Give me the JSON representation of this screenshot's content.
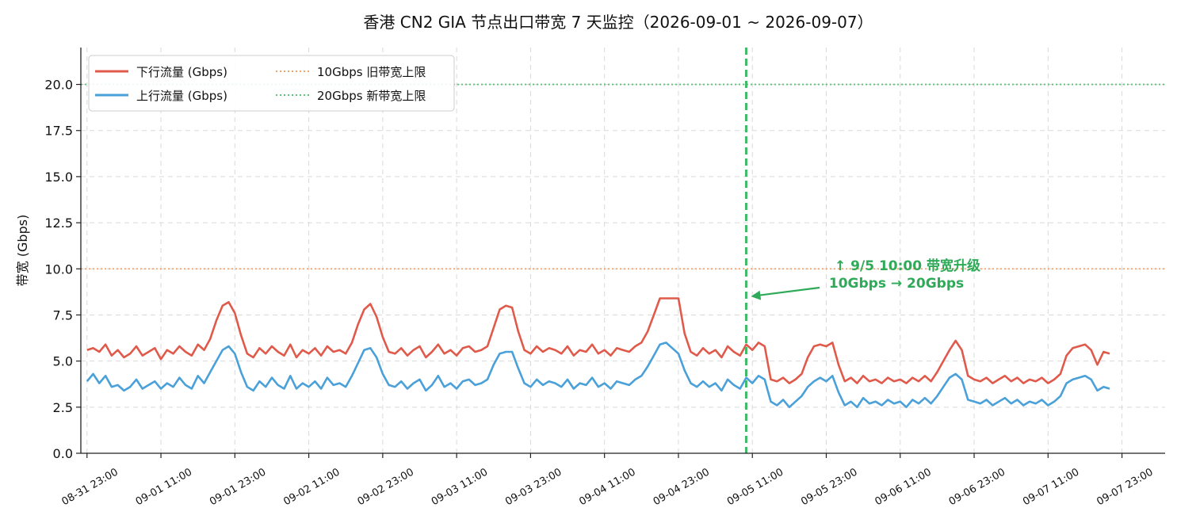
{
  "chart_data": {
    "type": "line",
    "title": "香港 CN2 GIA 节点出口带宽 7 天监控（2026-09-01 ~ 2026-09-07）",
    "xlabel": "",
    "ylabel": "带宽 (Gbps)",
    "ylim": [
      0,
      22
    ],
    "yticks": [
      "0.0",
      "2.5",
      "5.0",
      "7.5",
      "10.0",
      "12.5",
      "15.0",
      "17.5",
      "20.0"
    ],
    "xlim": [
      "2026-08-31 22:00",
      "2026-09-08 06:00"
    ],
    "xticks": [
      "08-31 23:00",
      "09-01 11:00",
      "09-01 23:00",
      "09-02 11:00",
      "09-02 23:00",
      "09-03 11:00",
      "09-03 23:00",
      "09-04 11:00",
      "09-04 23:00",
      "09-05 11:00",
      "09-05 23:00",
      "09-06 11:00",
      "09-06 23:00",
      "09-07 11:00",
      "09-07 23:00"
    ],
    "grid": true,
    "legend_position": "top-left",
    "colors": {
      "down": "#e05a4b",
      "up": "#4aa0d8",
      "old_limit": "#f0a36a",
      "new_limit": "#5cc47a",
      "event": "#3fba66",
      "annotation": "#2eaa58"
    },
    "x_hours": [
      0,
      1,
      2,
      3,
      4,
      5,
      6,
      7,
      8,
      9,
      10,
      11,
      12,
      13,
      14,
      15,
      16,
      17,
      18,
      19,
      20,
      21,
      22,
      23,
      24,
      25,
      26,
      27,
      28,
      29,
      30,
      31,
      32,
      33,
      34,
      35,
      36,
      37,
      38,
      39,
      40,
      41,
      42,
      43,
      44,
      45,
      46,
      47,
      48,
      49,
      50,
      51,
      52,
      53,
      54,
      55,
      56,
      57,
      58,
      59,
      60,
      61,
      62,
      63,
      64,
      65,
      66,
      67,
      68,
      69,
      70,
      71,
      72,
      73,
      74,
      75,
      76,
      77,
      78,
      79,
      80,
      81,
      82,
      83,
      84,
      85,
      86,
      87,
      88,
      89,
      90,
      91,
      92,
      93,
      94,
      95,
      96,
      97,
      98,
      99,
      100,
      101,
      102,
      103,
      104,
      105,
      106,
      107,
      108,
      109,
      110,
      111,
      112,
      113,
      114,
      115,
      116,
      117,
      118,
      119,
      120,
      121,
      122,
      123,
      124,
      125,
      126,
      127,
      128,
      129,
      130,
      131,
      132,
      133,
      134,
      135,
      136,
      137,
      138,
      139,
      140,
      141,
      142,
      143,
      144,
      145,
      146,
      147,
      148,
      149,
      150,
      151,
      152,
      153,
      154,
      155,
      156,
      157,
      158,
      159,
      160,
      161,
      162,
      163,
      164,
      165,
      166,
      167,
      168
    ],
    "x_hours_note": "hours since 2026-08-31 23:00",
    "series": [
      {
        "name": "下行流量 (Gbps)",
        "values": [
          5.6,
          5.7,
          5.5,
          5.9,
          5.3,
          5.6,
          5.2,
          5.4,
          5.8,
          5.3,
          5.5,
          5.7,
          5.1,
          5.6,
          5.4,
          5.8,
          5.5,
          5.3,
          5.9,
          5.6,
          6.2,
          7.2,
          8.0,
          8.2,
          7.6,
          6.4,
          5.4,
          5.2,
          5.7,
          5.4,
          5.8,
          5.5,
          5.3,
          5.9,
          5.2,
          5.6,
          5.4,
          5.7,
          5.3,
          5.8,
          5.5,
          5.6,
          5.4,
          6.0,
          7.0,
          7.8,
          8.1,
          7.4,
          6.3,
          5.5,
          5.4,
          5.7,
          5.3,
          5.6,
          5.8,
          5.2,
          5.5,
          5.9,
          5.4,
          5.6,
          5.3,
          5.7,
          5.8,
          5.5,
          5.6,
          5.8,
          6.8,
          7.8,
          8.0,
          7.9,
          6.6,
          5.6,
          5.4,
          5.8,
          5.5,
          5.7,
          5.6,
          5.4,
          5.8,
          5.3,
          5.6,
          5.5,
          5.9,
          5.4,
          5.6,
          5.3,
          5.7,
          5.6,
          5.5,
          5.8,
          6.0,
          6.6,
          7.5,
          8.4,
          8.4,
          8.4,
          8.4,
          6.5,
          5.5,
          5.3,
          5.7,
          5.4,
          5.6,
          5.2,
          5.8,
          5.5,
          5.3,
          5.9,
          5.6,
          6.0,
          5.8,
          4.0,
          3.9,
          4.1,
          3.8,
          4.0,
          4.3,
          5.2,
          5.8,
          5.9,
          5.8,
          6.0,
          4.8,
          3.9,
          4.1,
          3.8,
          4.2,
          3.9,
          4.0,
          3.8,
          4.1,
          3.9,
          4.0,
          3.8,
          4.1,
          3.9,
          4.2,
          3.9,
          4.4,
          5.0,
          5.6,
          6.1,
          5.6,
          4.2,
          4.0,
          3.9,
          4.1,
          3.8,
          4.0,
          4.2,
          3.9,
          4.1,
          3.8,
          4.0,
          3.9,
          4.1,
          3.8,
          4.0,
          4.3,
          5.3,
          5.7,
          5.8,
          5.9,
          5.6,
          4.8,
          5.5,
          5.4
        ],
        "color": "#e05a4b"
      },
      {
        "name": "上行流量 (Gbps)",
        "values": [
          3.9,
          4.3,
          3.8,
          4.2,
          3.6,
          3.7,
          3.4,
          3.6,
          4.0,
          3.5,
          3.7,
          3.9,
          3.5,
          3.8,
          3.6,
          4.1,
          3.7,
          3.5,
          4.2,
          3.8,
          4.4,
          5.0,
          5.6,
          5.8,
          5.4,
          4.4,
          3.6,
          3.4,
          3.9,
          3.6,
          4.1,
          3.7,
          3.5,
          4.2,
          3.5,
          3.8,
          3.6,
          3.9,
          3.5,
          4.1,
          3.7,
          3.8,
          3.6,
          4.2,
          4.9,
          5.6,
          5.7,
          5.2,
          4.3,
          3.7,
          3.6,
          3.9,
          3.5,
          3.8,
          4.0,
          3.4,
          3.7,
          4.2,
          3.6,
          3.8,
          3.5,
          3.9,
          4.0,
          3.7,
          3.8,
          4.0,
          4.8,
          5.4,
          5.5,
          5.5,
          4.6,
          3.8,
          3.6,
          4.0,
          3.7,
          3.9,
          3.8,
          3.6,
          4.0,
          3.5,
          3.8,
          3.7,
          4.1,
          3.6,
          3.8,
          3.5,
          3.9,
          3.8,
          3.7,
          4.0,
          4.2,
          4.7,
          5.3,
          5.9,
          6.0,
          5.7,
          5.4,
          4.5,
          3.8,
          3.6,
          3.9,
          3.6,
          3.8,
          3.4,
          4.0,
          3.7,
          3.5,
          4.1,
          3.8,
          4.2,
          4.0,
          2.8,
          2.6,
          2.9,
          2.5,
          2.8,
          3.1,
          3.6,
          3.9,
          4.1,
          3.9,
          4.2,
          3.3,
          2.6,
          2.8,
          2.5,
          3.0,
          2.7,
          2.8,
          2.6,
          2.9,
          2.7,
          2.8,
          2.5,
          2.9,
          2.7,
          3.0,
          2.7,
          3.1,
          3.6,
          4.1,
          4.3,
          4.0,
          2.9,
          2.8,
          2.7,
          2.9,
          2.6,
          2.8,
          3.0,
          2.7,
          2.9,
          2.6,
          2.8,
          2.7,
          2.9,
          2.6,
          2.8,
          3.1,
          3.8,
          4.0,
          4.1,
          4.2,
          4.0,
          3.4,
          3.6,
          3.5
        ],
        "color": "#4aa0d8"
      }
    ],
    "reference_lines": [
      {
        "name": "10Gbps 旧带宽上限",
        "value": 10.0,
        "color": "#f0a36a"
      },
      {
        "name": "20Gbps 新带宽上限",
        "value": 20.0,
        "color": "#5cc47a"
      }
    ],
    "event": {
      "time": "2026-09-05 10:00",
      "hour": 107
    },
    "annotation": {
      "line1": "↑ 9/5 10:00 带宽升级",
      "line2": "10Gbps → 20Gbps"
    }
  }
}
